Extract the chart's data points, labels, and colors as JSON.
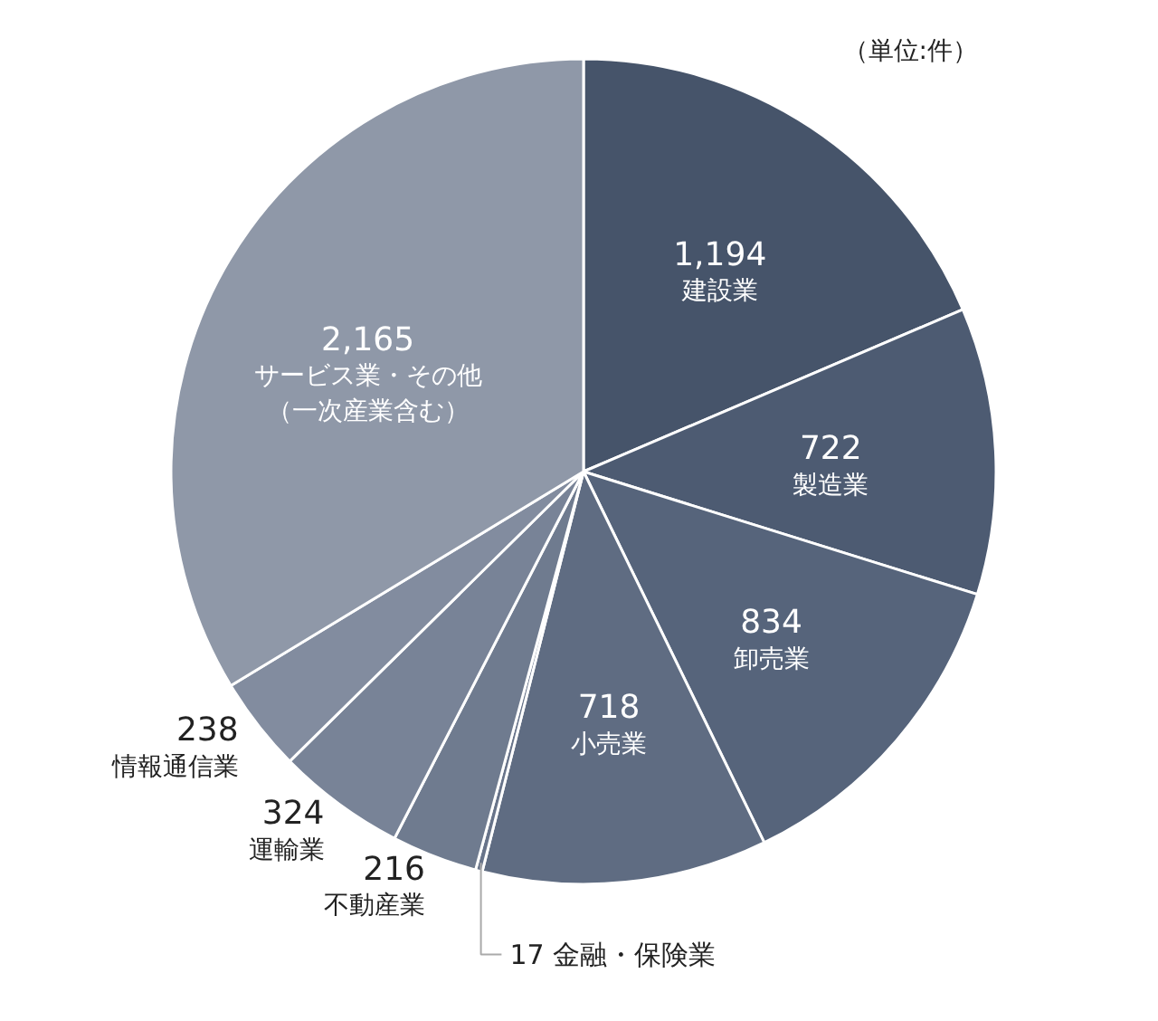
{
  "chart_data": {
    "type": "pie",
    "categories": [
      "建設業",
      "製造業",
      "卸売業",
      "小売業",
      "金融・保険業",
      "不動産業",
      "運輸業",
      "情報通信業",
      "サービス業・その他（一次産業含む）"
    ],
    "values": [
      1194,
      722,
      834,
      718,
      17,
      216,
      324,
      238,
      2165
    ],
    "value_labels": [
      "1,194",
      "722",
      "834",
      "718",
      "17",
      "216",
      "324",
      "238",
      "2,165"
    ],
    "colors": [
      "#46546a",
      "#4d5b72",
      "#56647b",
      "#5f6c82",
      "#68748a",
      "#6f7b8f",
      "#788397",
      "#828c9f",
      "#8f98a8"
    ],
    "annotations": [
      "（単位:件）"
    ]
  }
}
